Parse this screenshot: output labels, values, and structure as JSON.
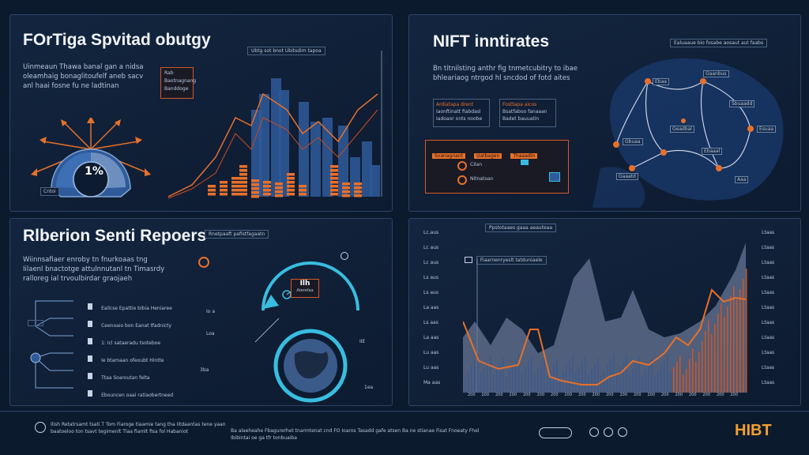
{
  "panels": {
    "top_left": {
      "title": "FOrTiga Spvitad obutgy",
      "desc": [
        "Uinmeaun Thawa banal gan a nidsa",
        "oleamhaig bonaglitoufelf aneb sacv",
        "anl haai fosne fu ne ladtinan"
      ],
      "chart_header": "Ubtg sot bnot Ubitsdim tapoa",
      "badge_lines": [
        "Rab",
        "Baotnagnang",
        "Banddoge"
      ],
      "gauge_label": "1%",
      "corner_tag": "Cntoi"
    },
    "top_right": {
      "title": "NIFT inntirates",
      "desc": [
        "Bn titnilsting anthr fig tnmetcubitry to ibae",
        "bhleariaog ntrgod hl sncdod of fotd aites"
      ],
      "card_a": [
        "Ardiatapa drent",
        "Iaonftinatt fiabdasl",
        "Iadoaor onts noobe"
      ],
      "card_b": [
        "Fosttapa aicos",
        "Bsatfaboo fanaaan",
        "Badet bauuatin"
      ],
      "map_header": "Ealuaaue bio fosabe aosaut aut faabs",
      "tabs": [
        "Svanagnant",
        "Uatbagen",
        "Thaaadin"
      ],
      "items": [
        "Cilan",
        "Nitnatoan"
      ],
      "nodes": [
        "Ebaa",
        "Gaanbus",
        "Sbuaadd",
        "Geadbal",
        "Gbuaa",
        "Ebaaal",
        "Esuaa",
        "Gaaatd",
        "Aaa"
      ]
    },
    "bottom_left": {
      "title": "Rlberion Senti Repoers",
      "desc": [
        "Wiinnsafiaer enroby tn fnurkoaas tng",
        "Iilaenl bnactotge attulnnutanl tn Timasrdy",
        "ralloreg ial trvoulbirdar graojaeh"
      ],
      "tag": "Rnetpaaft pafistfagaatn",
      "list": [
        "Eailcse Epattie bibia Heniaree",
        "Ceenoaio bon Eanat tfadnicty",
        "1: Icl sataeradu tsoteboe",
        "Ie btamaan ofeoubt Hintte",
        "Ttaa Soaroutan felta",
        "Ebouncen oaai ratiaobertneed"
      ],
      "center_label": "Ilh",
      "center_sub": "Aterefaa",
      "side_labels": [
        "Io a",
        "Loa",
        "3ba",
        "IIE",
        "1ea"
      ]
    },
    "bottom_right": {
      "header": "Ppstotaaes gaaa aeauteaa",
      "subheader": "Fiaarnenryeslt tatduniaele",
      "left_ticks": [
        "Lc.aus",
        "Lc aus",
        "Lc aus",
        "Ls aus",
        "Ls aus",
        "La aas",
        "Ls aas",
        "La aas",
        "Lu aas",
        "Lu aas",
        "Ma aas"
      ],
      "right_ticks": [
        "Ltaas",
        "Ltaas",
        "Ltaas",
        "Ltaas",
        "Ltaas",
        "Ltaas",
        "Ltaas",
        "Ltaas",
        "Ltaas",
        "Ltaas",
        "Ltaas"
      ],
      "x_ticks": [
        "200",
        "200",
        "200",
        "200",
        "200",
        "200",
        "200",
        "200",
        "200",
        "200",
        "200",
        "200",
        "200",
        "200",
        "200",
        "200",
        "200",
        "200",
        "200",
        "200"
      ]
    }
  },
  "footer": {
    "left_text": [
      "Ilish Retatrsamt tsati T Tom Fiaroge tiaamie tang tha Iitdaantas tene yaan",
      "baatoeloo ton tsavt tegimenlt Tlaa fiamlt fisa fol Habaniot"
    ],
    "mid_text": [
      "Ba alaeheahe Fbagurerhet tnarmtenat cnd FO Ioaros Tasadd gafe atsen Ba ne stianae Fisat Fnoeaty Fhel",
      "Ibibintai oe ga tfr tonbuaiba"
    ],
    "brand": "HIBT"
  },
  "colors": {
    "accent_orange": "#e8702a",
    "accent_blue": "#2f5b9a",
    "cyan": "#38bde0",
    "background": "#0c1a2e"
  }
}
